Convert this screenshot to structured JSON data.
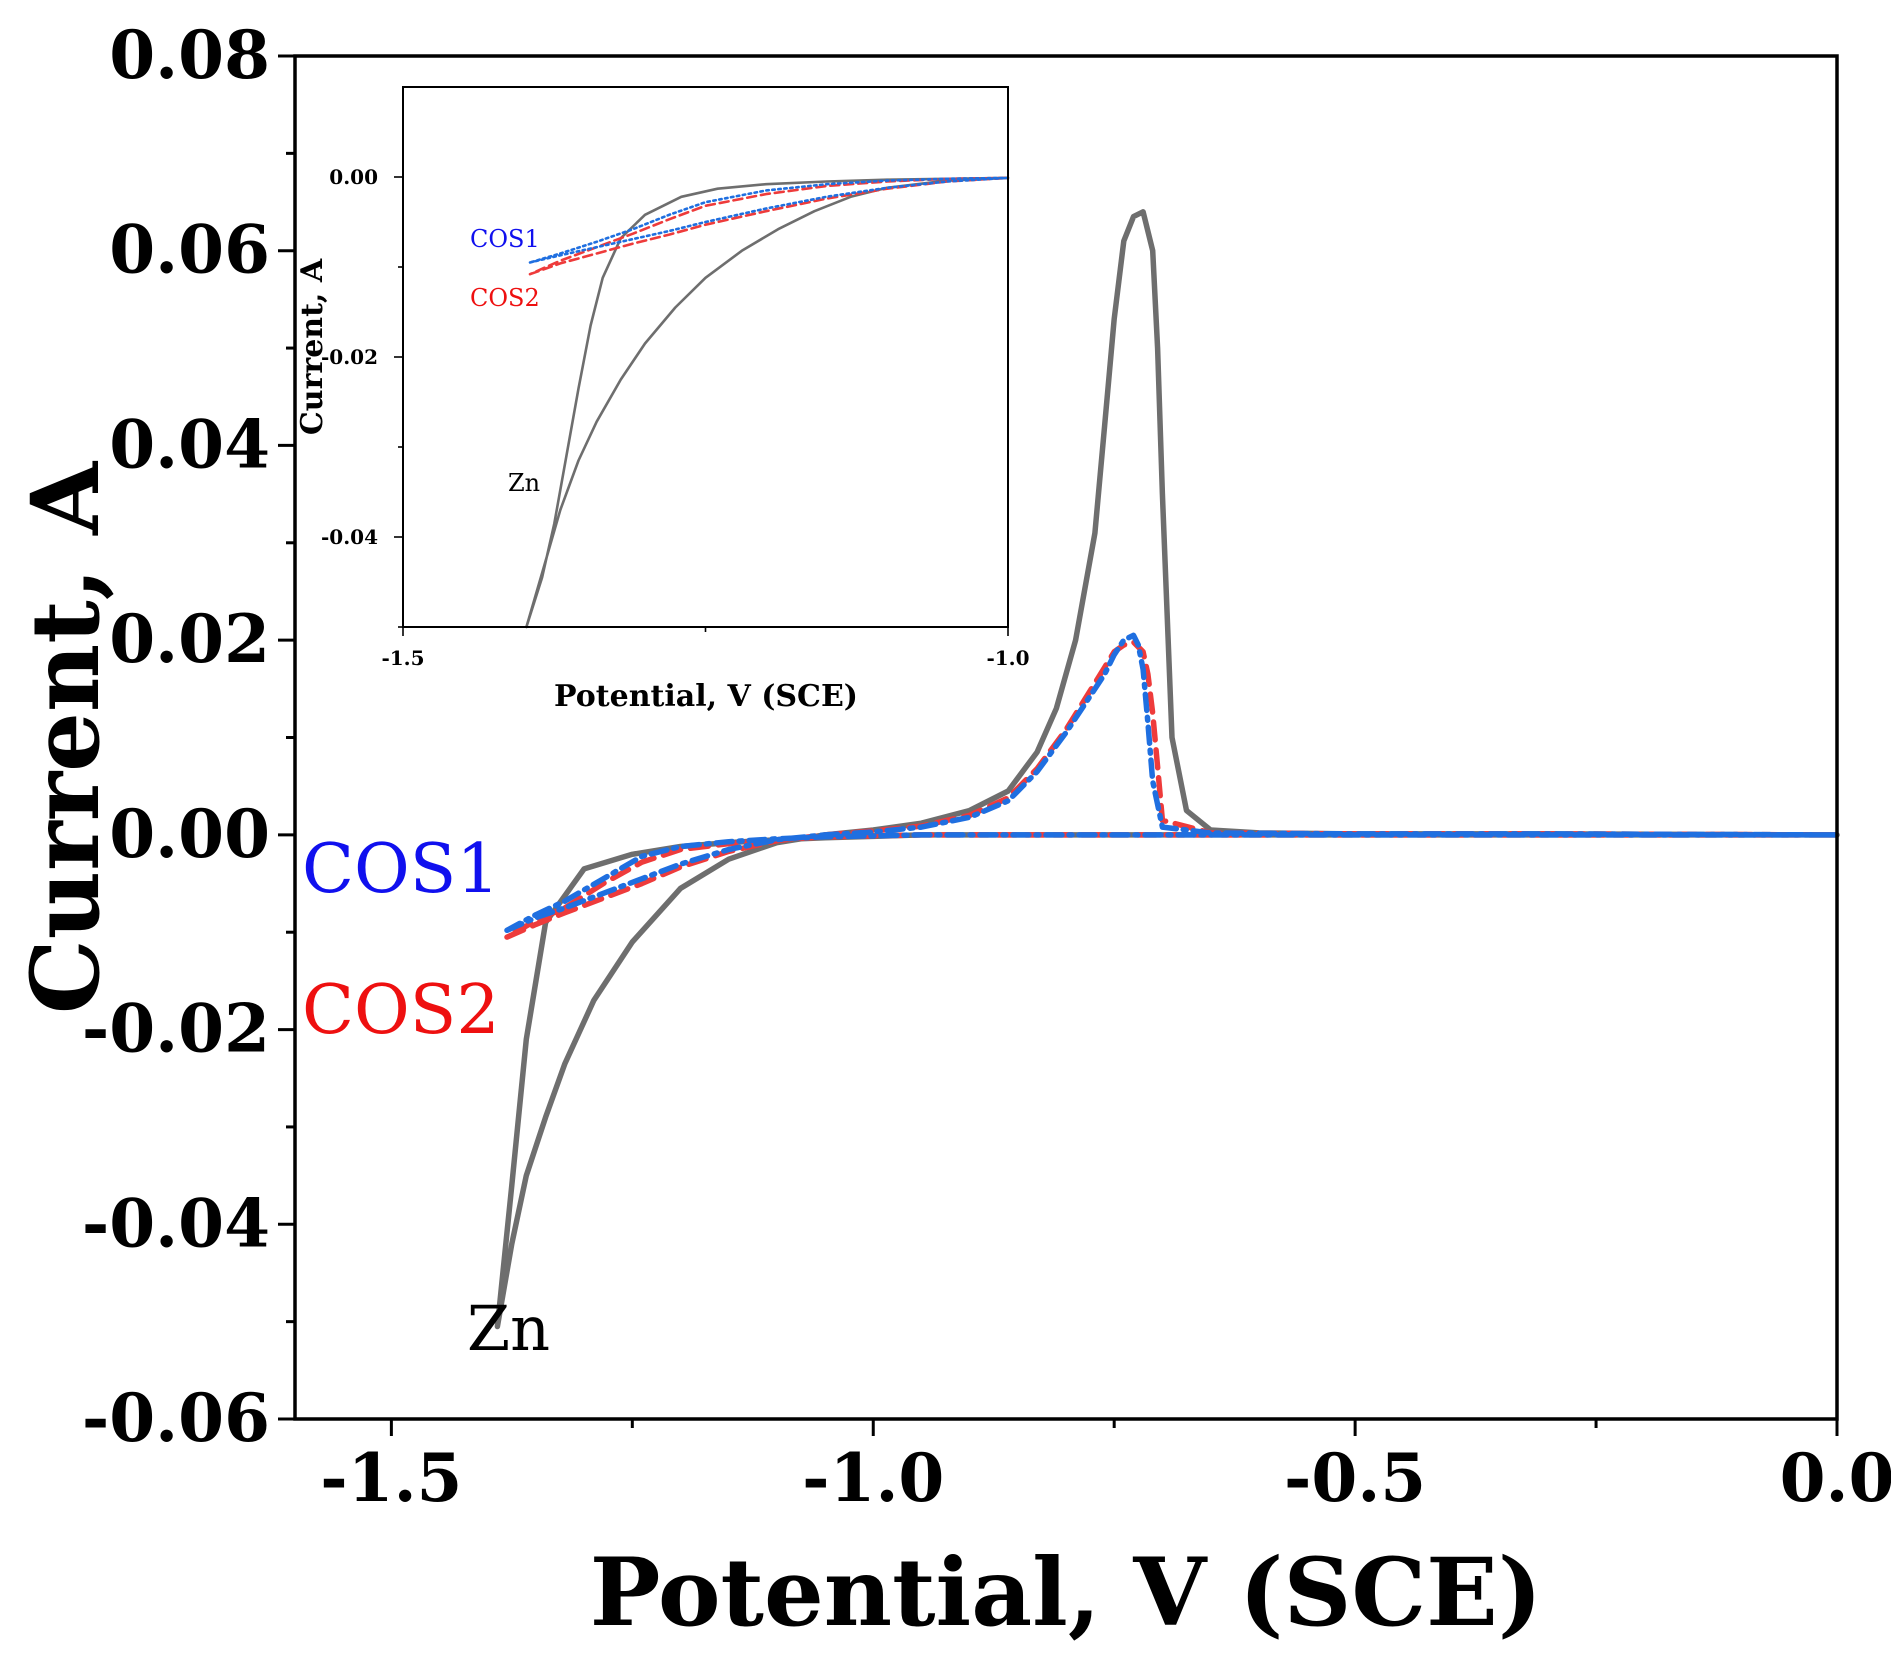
{
  "colors": {
    "zn": "#6e6e6e",
    "cos1": "#1f6fe0",
    "cos2": "#ee3b3b",
    "cos1_label": "#1010ee",
    "cos2_label": "#ee1010",
    "axis": "#000000"
  },
  "chart_data": [
    {
      "id": "main",
      "type": "line",
      "title": "",
      "xlabel": "Potential, V  (SCE)",
      "ylabel": "Current, A",
      "xlim": [
        -1.6,
        0.0
      ],
      "ylim": [
        -0.06,
        0.08
      ],
      "xticks": [
        -1.5,
        -1.0,
        -0.5,
        0.0
      ],
      "xtick_labels": [
        "-1.5",
        "-1.0",
        "-0.5",
        "0.0"
      ],
      "xminor": [
        -1.25,
        -0.75,
        -0.25
      ],
      "yticks": [
        -0.06,
        -0.04,
        -0.02,
        0.0,
        0.02,
        0.04,
        0.06,
        0.08
      ],
      "ytick_labels": [
        "-0.06",
        "-0.04",
        "-0.02",
        "0.00",
        "0.02",
        "0.04",
        "0.06",
        "0.08"
      ],
      "yminor": [
        -0.05,
        -0.03,
        -0.01,
        0.01,
        0.03,
        0.05,
        0.07
      ],
      "grid": false,
      "annotations": [
        {
          "text": "COS1",
          "series": "COS1",
          "x": -1.56,
          "y": -0.0035
        },
        {
          "text": "COS2",
          "series": "COS2",
          "x": -1.56,
          "y": -0.0205
        },
        {
          "text": "Zn",
          "series": "Zn",
          "x": -1.375,
          "y": -0.0515
        }
      ],
      "series": [
        {
          "name": "Zn",
          "style": "solid",
          "x": [
            -1.39,
            -1.375,
            -1.36,
            -1.34,
            -1.32,
            -1.29,
            -1.25,
            -1.2,
            -1.15,
            -1.1,
            -1.05,
            -1.0,
            -0.95,
            -0.9,
            -0.86,
            -0.83,
            -0.81,
            -0.79,
            -0.77,
            -0.76,
            -0.75,
            -0.74,
            -0.73,
            -0.72,
            -0.71,
            -0.705,
            -0.7,
            -0.69,
            -0.675,
            -0.65,
            -0.6,
            -0.5,
            -0.3,
            0.0,
            -0.3,
            -0.6,
            -0.8,
            -0.95,
            -1.05,
            -1.1,
            -1.15,
            -1.2,
            -1.25,
            -1.3,
            -1.34,
            -1.36,
            -1.375,
            -1.39
          ],
          "y": [
            -0.0505,
            -0.042,
            -0.035,
            -0.029,
            -0.0235,
            -0.017,
            -0.011,
            -0.0055,
            -0.0025,
            -0.0008,
            0.0,
            0.0005,
            0.0012,
            0.0025,
            0.0045,
            0.0085,
            0.013,
            0.02,
            0.031,
            0.042,
            0.053,
            0.061,
            0.0635,
            0.064,
            0.06,
            0.05,
            0.035,
            0.01,
            0.0025,
            0.0005,
            0.0002,
            0.0001,
            0.0001,
            0.0,
            0.0,
            0.0,
            0.0,
            0.0,
            -0.0003,
            -0.0005,
            -0.0008,
            -0.0012,
            -0.002,
            -0.0035,
            -0.009,
            -0.021,
            -0.036,
            -0.0505
          ]
        },
        {
          "name": "COS1",
          "style": "dash-dot",
          "x": [
            -1.38,
            -1.35,
            -1.32,
            -1.28,
            -1.24,
            -1.2,
            -1.15,
            -1.1,
            -1.05,
            -1.0,
            -0.95,
            -0.9,
            -0.86,
            -0.83,
            -0.8,
            -0.78,
            -0.76,
            -0.75,
            -0.74,
            -0.73,
            -0.725,
            -0.72,
            -0.715,
            -0.71,
            -0.7,
            -0.65,
            -0.5,
            -0.3,
            0.0,
            -0.3,
            -0.6,
            -0.8,
            -0.95,
            -1.05,
            -1.1,
            -1.15,
            -1.2,
            -1.24,
            -1.28,
            -1.32,
            -1.35,
            -1.38
          ],
          "y": [
            -0.0098,
            -0.0085,
            -0.0075,
            -0.006,
            -0.0045,
            -0.003,
            -0.0015,
            -0.0005,
            0.0,
            0.0003,
            0.0008,
            0.0018,
            0.0035,
            0.0065,
            0.0105,
            0.0135,
            0.0165,
            0.0185,
            0.02,
            0.0205,
            0.0195,
            0.017,
            0.0115,
            0.0055,
            0.0008,
            0.0002,
            0.0001,
            0.0001,
            0.0,
            0.0,
            0.0,
            0.0,
            0.0,
            -0.0002,
            -0.0004,
            -0.0007,
            -0.0012,
            -0.0022,
            -0.0045,
            -0.0068,
            -0.0082,
            -0.0098
          ]
        },
        {
          "name": "COS2",
          "style": "dashed",
          "x": [
            -1.38,
            -1.35,
            -1.32,
            -1.28,
            -1.24,
            -1.2,
            -1.15,
            -1.1,
            -1.05,
            -1.0,
            -0.95,
            -0.9,
            -0.86,
            -0.83,
            -0.8,
            -0.78,
            -0.76,
            -0.75,
            -0.74,
            -0.73,
            -0.72,
            -0.715,
            -0.71,
            -0.705,
            -0.7,
            -0.65,
            -0.5,
            -0.3,
            0.0,
            -0.3,
            -0.6,
            -0.8,
            -0.95,
            -1.05,
            -1.1,
            -1.15,
            -1.2,
            -1.24,
            -1.28,
            -1.32,
            -1.35,
            -1.38
          ],
          "y": [
            -0.0105,
            -0.0092,
            -0.008,
            -0.0065,
            -0.005,
            -0.0033,
            -0.0017,
            -0.0006,
            0.0,
            0.0004,
            0.0009,
            0.002,
            0.0038,
            0.0068,
            0.0108,
            0.014,
            0.0172,
            0.0188,
            0.0195,
            0.0198,
            0.0188,
            0.0165,
            0.0125,
            0.007,
            0.0015,
            0.0002,
            0.0001,
            0.0001,
            0.0,
            0.0,
            0.0,
            0.0,
            0.0,
            -0.0002,
            -0.0005,
            -0.0009,
            -0.0015,
            -0.0028,
            -0.005,
            -0.0075,
            -0.0088,
            -0.0105
          ]
        }
      ]
    },
    {
      "id": "inset",
      "type": "line",
      "title": "",
      "xlabel": "Potential, V  (SCE)",
      "ylabel": "Current, A",
      "xlim": [
        -1.5,
        -1.0
      ],
      "ylim": [
        -0.05,
        0.01
      ],
      "xticks": [
        -1.5,
        -1.0
      ],
      "xtick_labels": [
        "-1.5",
        "-1.0"
      ],
      "xminor": [
        -1.25
      ],
      "yticks": [
        -0.04,
        -0.02,
        0.0
      ],
      "ytick_labels": [
        "-0.04",
        "-0.02",
        "0.00"
      ],
      "yminor": [
        -0.05,
        -0.03,
        -0.01
      ],
      "grid": false,
      "annotations": [
        {
          "text": "COS1",
          "series": "COS1",
          "x": -1.445,
          "y": -0.0065
        },
        {
          "text": "COS2",
          "series": "COS2",
          "x": -1.445,
          "y": -0.0135
        },
        {
          "text": "Zn",
          "series": "Zn",
          "x": -1.41,
          "y": -0.0345
        }
      ],
      "series": [
        {
          "name": "Zn",
          "style": "solid",
          "x": [
            -1.398,
            -1.385,
            -1.37,
            -1.355,
            -1.34,
            -1.32,
            -1.3,
            -1.275,
            -1.25,
            -1.22,
            -1.19,
            -1.16,
            -1.13,
            -1.1,
            -1.05,
            -1.0,
            -1.05,
            -1.1,
            -1.15,
            -1.2,
            -1.24,
            -1.27,
            -1.3,
            -1.32,
            -1.335,
            -1.345,
            -1.355,
            -1.365,
            -1.375,
            -1.385,
            -1.398
          ],
          "y": [
            -0.05,
            -0.044,
            -0.037,
            -0.0315,
            -0.0272,
            -0.0225,
            -0.0185,
            -0.0145,
            -0.0112,
            -0.0082,
            -0.0058,
            -0.0038,
            -0.0022,
            -0.0012,
            -0.0004,
            -0.0001,
            -0.0002,
            -0.0003,
            -0.0005,
            -0.0008,
            -0.0013,
            -0.0022,
            -0.0042,
            -0.0068,
            -0.0112,
            -0.0165,
            -0.0235,
            -0.031,
            -0.0385,
            -0.0445,
            -0.05
          ]
        },
        {
          "name": "COS1",
          "style": "dotted",
          "x": [
            -1.395,
            -1.37,
            -1.34,
            -1.31,
            -1.28,
            -1.25,
            -1.2,
            -1.15,
            -1.1,
            -1.05,
            -1.0,
            -1.05,
            -1.1,
            -1.15,
            -1.2,
            -1.25,
            -1.28,
            -1.31,
            -1.34,
            -1.37,
            -1.395
          ],
          "y": [
            -0.0095,
            -0.0087,
            -0.0078,
            -0.0069,
            -0.006,
            -0.005,
            -0.0035,
            -0.0022,
            -0.0012,
            -0.0005,
            -0.0001,
            -0.0002,
            -0.0004,
            -0.0008,
            -0.0015,
            -0.0028,
            -0.0042,
            -0.0058,
            -0.0072,
            -0.0085,
            -0.0095
          ]
        },
        {
          "name": "COS2",
          "style": "dashed",
          "x": [
            -1.395,
            -1.37,
            -1.34,
            -1.31,
            -1.28,
            -1.25,
            -1.2,
            -1.15,
            -1.1,
            -1.05,
            -1.0,
            -1.05,
            -1.1,
            -1.15,
            -1.2,
            -1.25,
            -1.28,
            -1.31,
            -1.34,
            -1.37,
            -1.395
          ],
          "y": [
            -0.0108,
            -0.0096,
            -0.0085,
            -0.0074,
            -0.0064,
            -0.0053,
            -0.0038,
            -0.0024,
            -0.0013,
            -0.0005,
            -0.0001,
            -0.0002,
            -0.0005,
            -0.001,
            -0.0019,
            -0.0032,
            -0.0047,
            -0.0063,
            -0.0078,
            -0.0093,
            -0.0108
          ]
        }
      ]
    }
  ]
}
